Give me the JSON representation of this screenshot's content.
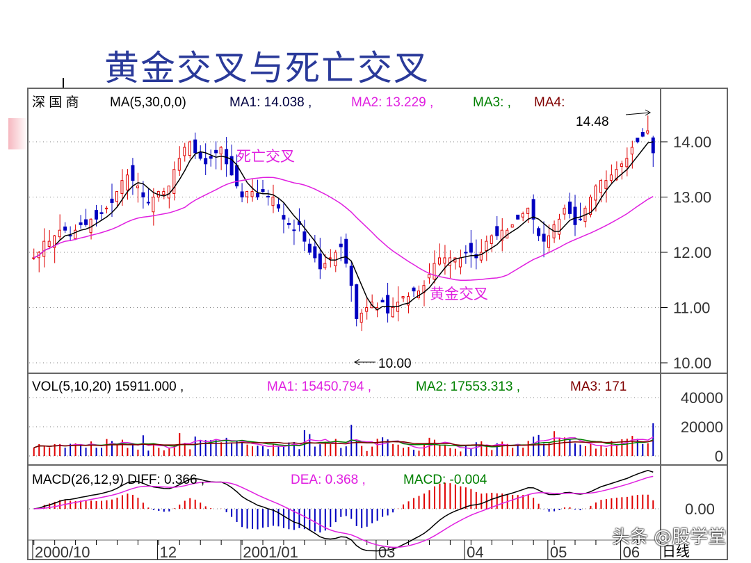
{
  "title": "黄金交叉与死亡交叉",
  "watermark": "头条 @股学堂",
  "chart_data": {
    "type": "candlestick",
    "stock": "深 国 商",
    "price_header": {
      "ind": "MA(5,30,0,0)",
      "ma1": "MA1: 14.038 ,",
      "ma2": "MA2: 13.229 ,",
      "ma3": "MA3:  ,",
      "ma4": "MA4:"
    },
    "vol_header": {
      "ind": "VOL(5,10,20)  15911.000 ,",
      "ma1": "MA1: 15450.794 ,",
      "ma2": "MA2: 17553.313 ,",
      "ma3": "MA3: 171"
    },
    "macd_header": {
      "ind": "MACD(26,12,9)  DIFF: 0.366 ,",
      "dea": "DEA: 0.368 ,",
      "macd": "MACD: -0.004"
    },
    "price_ticks": [
      "14.00",
      "13.00",
      "12.00",
      "11.00",
      "10.00"
    ],
    "price_tick_values": [
      14,
      13,
      12,
      11,
      10
    ],
    "price_range": [
      9.98,
      15.02
    ],
    "vol_ticks": [
      "40000",
      "20000",
      "0"
    ],
    "vol_tick_values": [
      40000,
      20000,
      0
    ],
    "macd_ticks": [
      "0.00"
    ],
    "x_labels": [
      "2000/10",
      "12",
      "2001/01",
      "03",
      "04",
      "05",
      "06"
    ],
    "x_label_bars": [
      0,
      24,
      40,
      66,
      83,
      99,
      113
    ],
    "period": "日线",
    "annotations": {
      "death_cross": "死亡交叉",
      "golden_cross": "黄金交叉",
      "high": "14.48",
      "low": "10.00"
    },
    "close": [
      11.9,
      12.0,
      12.2,
      12.2,
      12.3,
      12.4,
      12.4,
      12.3,
      12.4,
      12.5,
      12.5,
      12.6,
      12.6,
      12.7,
      12.8,
      12.9,
      13.1,
      13.3,
      13.4,
      13.3,
      13.2,
      13.0,
      12.9,
      13.0,
      13.1,
      13.1,
      13.2,
      13.5,
      13.7,
      13.9,
      14.0,
      13.8,
      13.7,
      13.6,
      13.7,
      13.8,
      13.9,
      13.6,
      13.4,
      13.2,
      13.0,
      13.1,
      13.1,
      13.0,
      13.1,
      13.0,
      13.0,
      12.8,
      12.6,
      12.5,
      12.4,
      12.5,
      12.2,
      12.0,
      11.9,
      11.7,
      11.8,
      11.9,
      12.0,
      12.1,
      11.8,
      11.4,
      10.8,
      10.9,
      11.0,
      11.1,
      11.0,
      11.1,
      10.9,
      11.0,
      11.1,
      11.2,
      11.2,
      11.3,
      11.3,
      11.4,
      11.6,
      11.8,
      11.9,
      11.9,
      11.9,
      11.9,
      11.9,
      12.0,
      12.0,
      11.9,
      12.0,
      12.2,
      12.3,
      12.3,
      12.4,
      12.4,
      12.5,
      12.6,
      12.7,
      12.8,
      12.6,
      12.3,
      12.2,
      12.3,
      12.5,
      12.6,
      12.8,
      12.7,
      12.5,
      12.6,
      12.8,
      13.0,
      13.2,
      13.3,
      13.3,
      13.4,
      13.5,
      13.6,
      13.7,
      13.9,
      14.0,
      14.1,
      14.2,
      13.8
    ],
    "colors": {
      "up": "#e00000",
      "down": "#0000c0",
      "ma_short": "#000000",
      "ma_long": "#e020e0",
      "ma3": "#008000",
      "ma4": "#800000",
      "grid": "#808080"
    }
  }
}
